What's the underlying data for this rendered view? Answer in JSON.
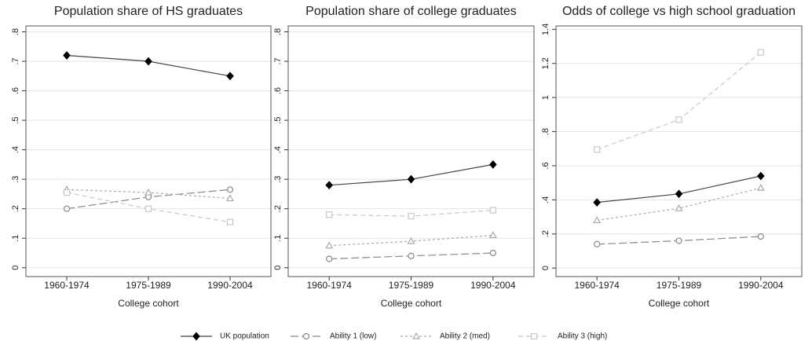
{
  "chart_data": [
    {
      "type": "line",
      "title": "Population share of HS graduates",
      "xlabel": "College cohort",
      "categories": [
        "1960-1974",
        "1975-1989",
        "1990-2004"
      ],
      "ylim": [
        -0.03,
        0.82
      ],
      "yticks": [
        0,
        {
          "value": 0.1,
          "label": ".1"
        },
        {
          "value": 0.2,
          "label": ".2"
        },
        {
          "value": 0.3,
          "label": ".3"
        },
        {
          "value": 0.4,
          "label": ".4"
        },
        {
          "value": 0.5,
          "label": ".5"
        },
        {
          "value": 0.6,
          "label": ".6"
        },
        {
          "value": 0.7,
          "label": ".7"
        },
        {
          "value": 0.8,
          "label": ".8"
        }
      ],
      "grid": true,
      "series": [
        {
          "name": "UK population",
          "color": "#444444",
          "marker": "diamond",
          "dash": "solid",
          "values": [
            0.72,
            0.7,
            0.65
          ]
        },
        {
          "name": "Ability 1 (low)",
          "color": "#888888",
          "marker": "circle",
          "dash": "longdash",
          "values": [
            0.2,
            0.24,
            0.265
          ]
        },
        {
          "name": "Ability 2 (med)",
          "color": "#aaaaaa",
          "marker": "triangle",
          "dash": "shortdash",
          "values": [
            0.265,
            0.255,
            0.235
          ]
        },
        {
          "name": "Ability 3 (high)",
          "color": "#c8c8c8",
          "marker": "square",
          "dash": "dash",
          "values": [
            0.255,
            0.2,
            0.155
          ]
        }
      ]
    },
    {
      "type": "line",
      "title": "Population share of college graduates",
      "xlabel": "College cohort",
      "categories": [
        "1960-1974",
        "1975-1989",
        "1990-2004"
      ],
      "ylim": [
        -0.03,
        0.82
      ],
      "yticks": [
        0,
        {
          "value": 0.1,
          "label": ".1"
        },
        {
          "value": 0.2,
          "label": ".2"
        },
        {
          "value": 0.3,
          "label": ".3"
        },
        {
          "value": 0.4,
          "label": ".4"
        },
        {
          "value": 0.5,
          "label": ".5"
        },
        {
          "value": 0.6,
          "label": ".6"
        },
        {
          "value": 0.7,
          "label": ".7"
        },
        {
          "value": 0.8,
          "label": ".8"
        }
      ],
      "grid": true,
      "series": [
        {
          "name": "UK population",
          "color": "#444444",
          "marker": "diamond",
          "dash": "solid",
          "values": [
            0.28,
            0.3,
            0.35
          ]
        },
        {
          "name": "Ability 1 (low)",
          "color": "#888888",
          "marker": "circle",
          "dash": "longdash",
          "values": [
            0.03,
            0.04,
            0.05
          ]
        },
        {
          "name": "Ability 2 (med)",
          "color": "#aaaaaa",
          "marker": "triangle",
          "dash": "shortdash",
          "values": [
            0.075,
            0.09,
            0.11
          ]
        },
        {
          "name": "Ability 3 (high)",
          "color": "#c8c8c8",
          "marker": "square",
          "dash": "dash",
          "values": [
            0.18,
            0.175,
            0.195
          ]
        }
      ]
    },
    {
      "type": "line",
      "title": "Odds of college vs high school graduation",
      "xlabel": "College cohort",
      "categories": [
        "1960-1974",
        "1975-1989",
        "1990-2004"
      ],
      "ylim": [
        -0.05,
        1.42
      ],
      "yticks": [
        0,
        {
          "value": 0.2,
          "label": ".2"
        },
        {
          "value": 0.4,
          "label": ".4"
        },
        {
          "value": 0.6,
          "label": ".6"
        },
        {
          "value": 0.8,
          "label": ".8"
        },
        1,
        {
          "value": 1.2,
          "label": "1.2"
        },
        {
          "value": 1.4,
          "label": "1.4"
        }
      ],
      "grid": true,
      "series": [
        {
          "name": "UK population",
          "color": "#444444",
          "marker": "diamond",
          "dash": "solid",
          "values": [
            0.385,
            0.435,
            0.54
          ]
        },
        {
          "name": "Ability 1 (low)",
          "color": "#888888",
          "marker": "circle",
          "dash": "longdash",
          "values": [
            0.14,
            0.16,
            0.185
          ]
        },
        {
          "name": "Ability 2 (med)",
          "color": "#aaaaaa",
          "marker": "triangle",
          "dash": "shortdash",
          "values": [
            0.28,
            0.35,
            0.47
          ]
        },
        {
          "name": "Ability 3 (high)",
          "color": "#c8c8c8",
          "marker": "square",
          "dash": "dash",
          "values": [
            0.695,
            0.87,
            1.265
          ]
        }
      ]
    }
  ]
}
